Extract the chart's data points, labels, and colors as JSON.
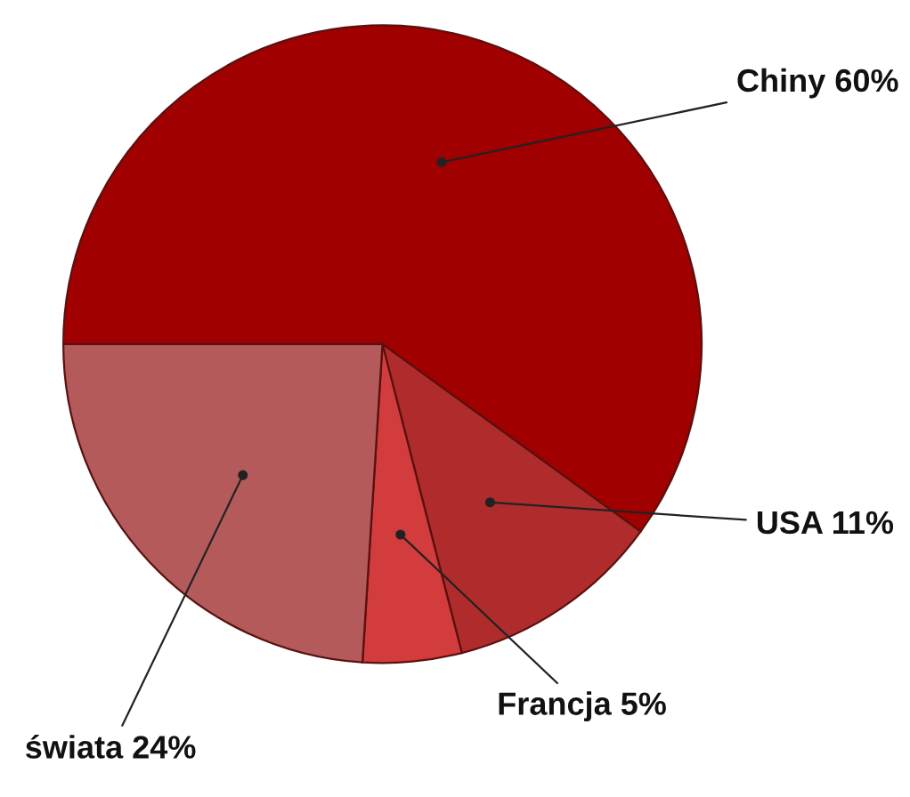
{
  "chart_data": {
    "type": "pie",
    "categories": [
      "Chiny",
      "USA",
      "Francja",
      "świata"
    ],
    "values": [
      60,
      11,
      5,
      24
    ],
    "value_labels": [
      "60%",
      "11%",
      "5%",
      "24%"
    ],
    "colors": [
      "#a00000",
      "#b02c2c",
      "#d23c3c",
      "#b45a5a"
    ],
    "legend": false
  }
}
